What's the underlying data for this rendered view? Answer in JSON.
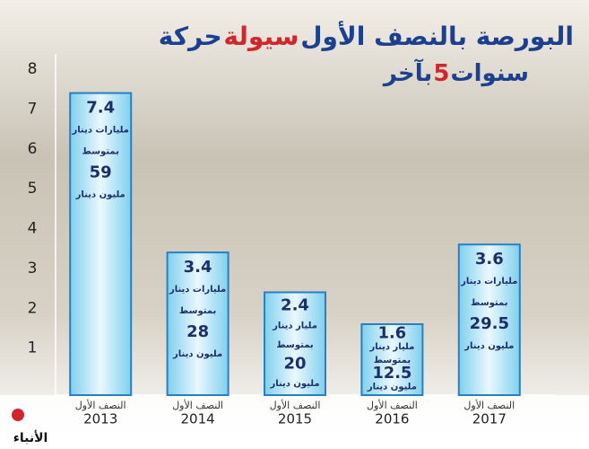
{
  "chart_data": {
    "type": "bar",
    "title": {
      "start": "حركة",
      "highlight": "سيولة",
      "end": "البورصة بالنصف الأول"
    },
    "subtitle": {
      "start": "بآخر",
      "highlight": "5",
      "end": "سنوات"
    },
    "category_prefix": "النصف الأول",
    "categories": [
      "2013",
      "2014",
      "2015",
      "2016",
      "2017"
    ],
    "values": [
      7.4,
      3.4,
      2.4,
      1.6,
      3.6
    ],
    "value_units": [
      "مليارات دينار",
      "مليارات دينار",
      "مليار دينار",
      "مليار دينار",
      "مليارات دينار"
    ],
    "average_word": "بمتوسط",
    "average_values": [
      59,
      28,
      20,
      12.5,
      29.5
    ],
    "average_unit": "مليون دينار",
    "color": "#9fdcf2",
    "ylim": [
      0,
      8
    ],
    "yticks": [
      1,
      2,
      3,
      4,
      5,
      6,
      7,
      8
    ],
    "source": "الأنباء"
  }
}
